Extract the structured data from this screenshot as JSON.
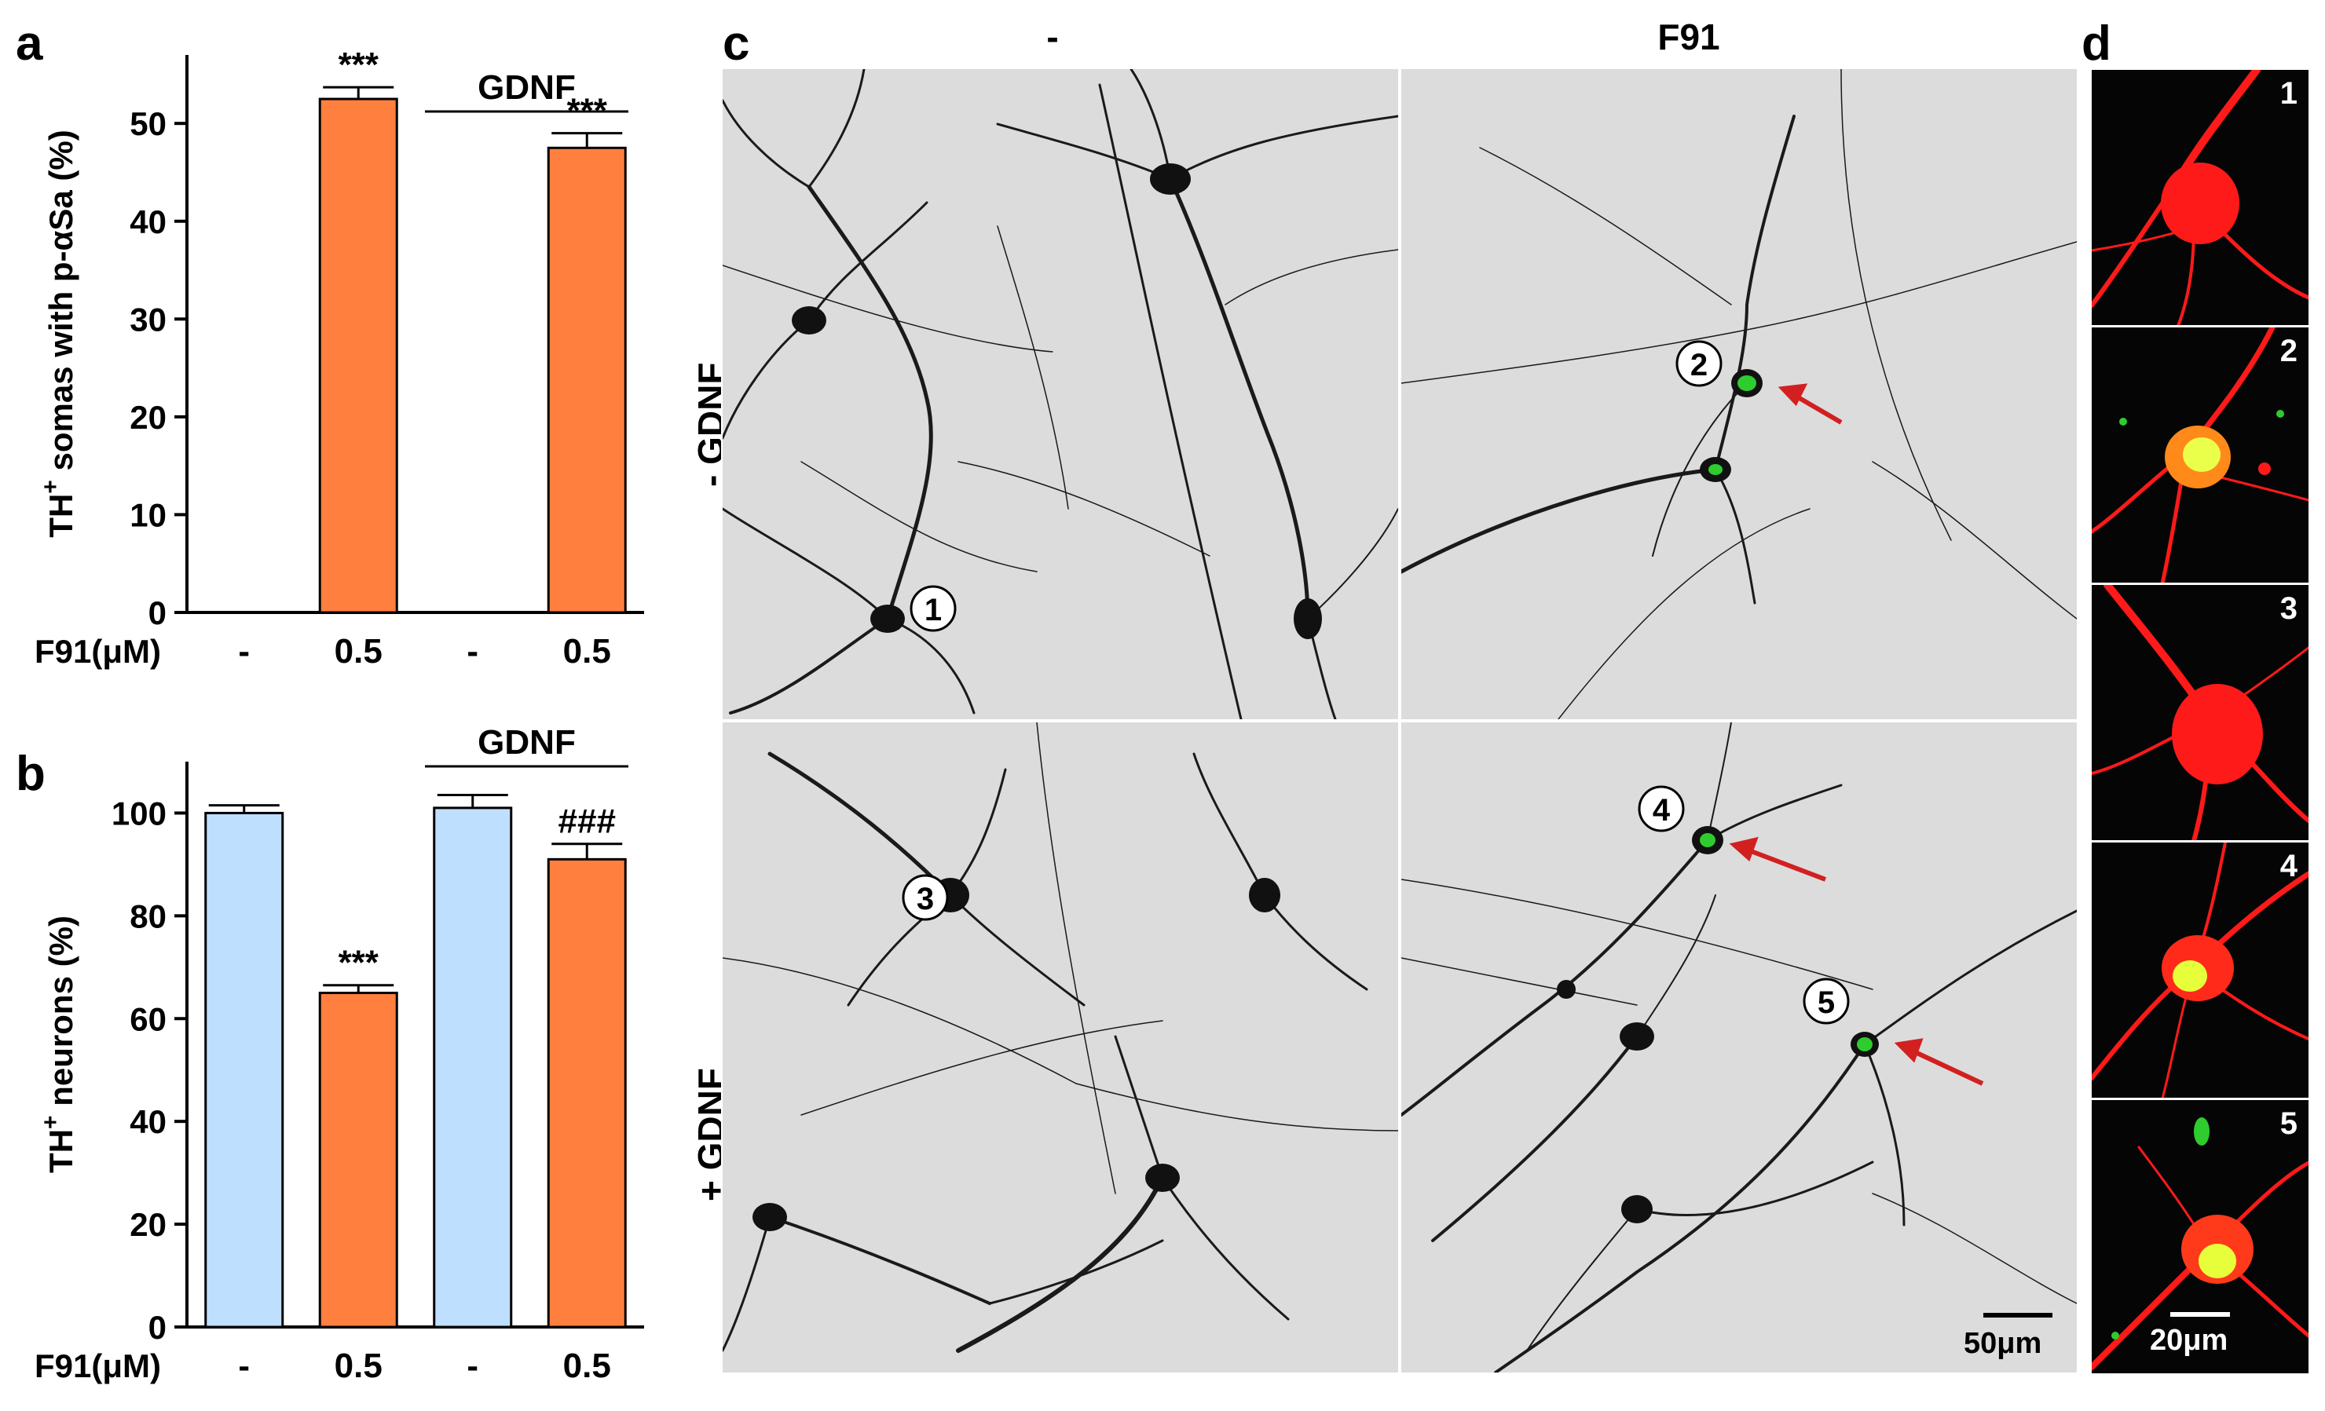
{
  "panels": {
    "a": "a",
    "b": "b",
    "c": "c",
    "d": "d"
  },
  "chart_data": [
    {
      "type": "bar",
      "panel": "a",
      "ylabel_main": "TH",
      "ylabel_sup": "+",
      "ylabel_rest": " somas with p-αSa (%)",
      "xrow_label": "F91(μM)",
      "categories": [
        "-",
        "0.5",
        "-",
        "0.5"
      ],
      "values": [
        0,
        52.5,
        0,
        47.5
      ],
      "errors": [
        0,
        1.2,
        0,
        1.5
      ],
      "bar_colors": [
        "#bfdfff",
        "#ff7f3f",
        "#bfdfff",
        "#ff7f3f"
      ],
      "annotations": [
        "",
        "***",
        "",
        "***"
      ],
      "ylim": [
        0,
        57
      ],
      "yticks": [
        0,
        10,
        20,
        30,
        40,
        50
      ],
      "group_label": "GDNF"
    },
    {
      "type": "bar",
      "panel": "b",
      "ylabel_main": "TH",
      "ylabel_sup": "+",
      "ylabel_rest": " neurons (%)",
      "xrow_label": "F91(μM)",
      "categories": [
        "-",
        "0.5",
        "-",
        "0.5"
      ],
      "values": [
        100,
        65,
        101,
        91
      ],
      "errors": [
        1.5,
        1.5,
        2.5,
        3
      ],
      "bar_colors": [
        "#bfdfff",
        "#ff7f3f",
        "#bfdfff",
        "#ff7f3f"
      ],
      "annotations": [
        "",
        "***",
        "",
        "###"
      ],
      "ylim": [
        0,
        110
      ],
      "yticks": [
        0,
        20,
        40,
        60,
        80,
        100
      ],
      "group_label": "GDNF"
    }
  ],
  "panel_c": {
    "col_headers": [
      "-",
      "F91"
    ],
    "row_headers": [
      "- GDNF",
      "+ GDNF"
    ],
    "markers": [
      "1",
      "2",
      "3",
      "4",
      "5"
    ],
    "scale_bar": "50μm"
  },
  "panel_d": {
    "inset_numbers": [
      "1",
      "2",
      "3",
      "4",
      "5"
    ],
    "scale_bar": "20μm"
  },
  "colors": {
    "neuron": "#1a1a1a",
    "background": "#dcdcdc",
    "psyn": "#2ecc2e",
    "th_red": "#ff1a1a",
    "arrow": "#d22020"
  }
}
